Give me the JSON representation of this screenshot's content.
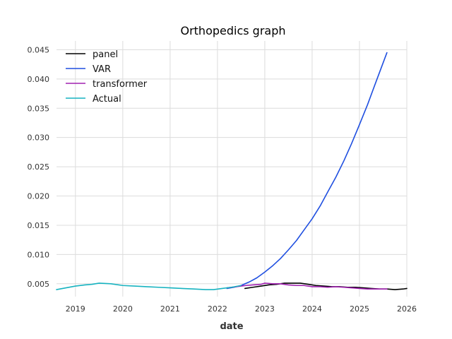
{
  "chart_data": {
    "type": "line",
    "title": "Orthopedics graph",
    "xlabel": "date",
    "ylabel": "",
    "xlim": [
      2018.6,
      2026.0
    ],
    "ylim": [
      0.0028,
      0.0465
    ],
    "grid": true,
    "legend_position": "top-left",
    "x_ticks": [
      2019,
      2020,
      2021,
      2022,
      2023,
      2024,
      2025,
      2026
    ],
    "x_tick_labels": [
      "2019",
      "2020",
      "2021",
      "2022",
      "2023",
      "2024",
      "2025",
      "2026"
    ],
    "y_ticks": [
      0.005,
      0.01,
      0.015,
      0.02,
      0.025,
      0.03,
      0.035,
      0.04,
      0.045
    ],
    "y_tick_labels": [
      "0.005",
      "0.010",
      "0.015",
      "0.020",
      "0.025",
      "0.030",
      "0.035",
      "0.040",
      "0.045"
    ],
    "series": [
      {
        "name": "panel",
        "color": "#000000",
        "points": [
          [
            2022.58,
            0.0042
          ],
          [
            2022.75,
            0.0044
          ],
          [
            2022.92,
            0.0046
          ],
          [
            2023.08,
            0.0048
          ],
          [
            2023.25,
            0.0049
          ],
          [
            2023.42,
            0.0051
          ],
          [
            2023.58,
            0.0051
          ],
          [
            2023.75,
            0.0051
          ],
          [
            2023.92,
            0.0049
          ],
          [
            2024.08,
            0.0047
          ],
          [
            2024.25,
            0.0046
          ],
          [
            2024.42,
            0.0045
          ],
          [
            2024.58,
            0.0045
          ],
          [
            2024.75,
            0.0044
          ],
          [
            2024.92,
            0.0044
          ],
          [
            2025.08,
            0.0043
          ],
          [
            2025.25,
            0.0042
          ],
          [
            2025.42,
            0.0041
          ],
          [
            2025.58,
            0.0041
          ],
          [
            2025.75,
            0.004
          ],
          [
            2025.92,
            0.0041
          ],
          [
            2026.0,
            0.0042
          ]
        ]
      },
      {
        "name": "VAR",
        "color": "#1f4fe0",
        "points": [
          [
            2022.2,
            0.0042
          ],
          [
            2022.35,
            0.0044
          ],
          [
            2022.5,
            0.0047
          ],
          [
            2022.67,
            0.0053
          ],
          [
            2022.83,
            0.006
          ],
          [
            2023.0,
            0.007
          ],
          [
            2023.17,
            0.0081
          ],
          [
            2023.33,
            0.0093
          ],
          [
            2023.5,
            0.0108
          ],
          [
            2023.67,
            0.0124
          ],
          [
            2023.83,
            0.0142
          ],
          [
            2024.0,
            0.0161
          ],
          [
            2024.17,
            0.0183
          ],
          [
            2024.33,
            0.0207
          ],
          [
            2024.5,
            0.0232
          ],
          [
            2024.67,
            0.026
          ],
          [
            2024.83,
            0.0289
          ],
          [
            2025.0,
            0.0322
          ],
          [
            2025.17,
            0.0356
          ],
          [
            2025.33,
            0.0391
          ],
          [
            2025.58,
            0.0445
          ]
        ]
      },
      {
        "name": "transformer",
        "color": "#a020b0",
        "points": [
          [
            2022.2,
            0.0043
          ],
          [
            2022.4,
            0.0045
          ],
          [
            2022.6,
            0.0047
          ],
          [
            2022.75,
            0.0048
          ],
          [
            2022.92,
            0.0049
          ],
          [
            2023.0,
            0.0051
          ],
          [
            2023.17,
            0.005
          ],
          [
            2023.33,
            0.005
          ],
          [
            2023.5,
            0.0048
          ],
          [
            2023.67,
            0.0047
          ],
          [
            2023.83,
            0.0047
          ],
          [
            2024.0,
            0.0045
          ],
          [
            2024.17,
            0.0045
          ],
          [
            2024.33,
            0.0044
          ],
          [
            2024.5,
            0.0045
          ],
          [
            2024.67,
            0.0044
          ],
          [
            2024.83,
            0.0043
          ],
          [
            2025.0,
            0.0042
          ],
          [
            2025.17,
            0.0041
          ],
          [
            2025.33,
            0.0041
          ],
          [
            2025.5,
            0.0041
          ],
          [
            2025.58,
            0.0041
          ]
        ]
      },
      {
        "name": "Actual",
        "color": "#17b3c0",
        "points": [
          [
            2018.6,
            0.004
          ],
          [
            2018.8,
            0.0043
          ],
          [
            2019.0,
            0.0046
          ],
          [
            2019.2,
            0.0048
          ],
          [
            2019.35,
            0.0049
          ],
          [
            2019.5,
            0.0051
          ],
          [
            2019.75,
            0.005
          ],
          [
            2020.0,
            0.0047
          ],
          [
            2020.25,
            0.0046
          ],
          [
            2020.5,
            0.0045
          ],
          [
            2020.75,
            0.0044
          ],
          [
            2021.0,
            0.0043
          ],
          [
            2021.25,
            0.0042
          ],
          [
            2021.5,
            0.0041
          ],
          [
            2021.75,
            0.004
          ],
          [
            2021.92,
            0.004
          ],
          [
            2022.1,
            0.0042
          ],
          [
            2022.3,
            0.0044
          ],
          [
            2022.5,
            0.0047
          ]
        ]
      }
    ]
  }
}
